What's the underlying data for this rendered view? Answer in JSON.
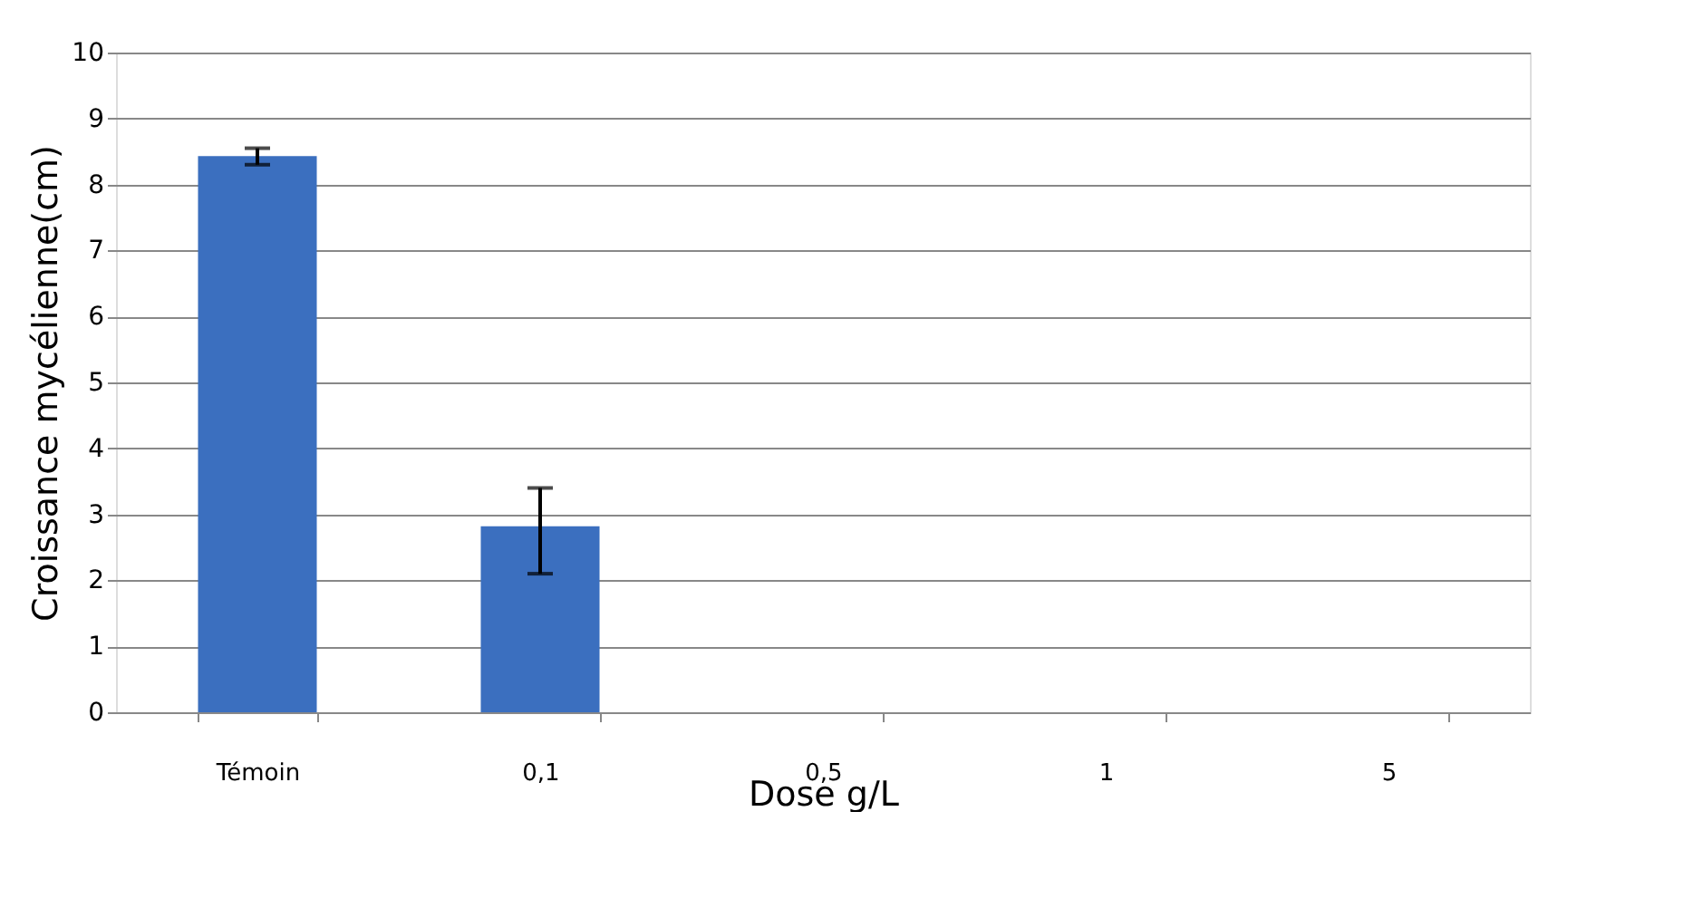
{
  "chart_data": {
    "type": "bar",
    "xlabel": "Dose g/L",
    "ylabel": "Croissance mycélienne(cm)",
    "categories": [
      "Témoin",
      "0,1",
      "0,5",
      "1",
      "5"
    ],
    "values": [
      8.43,
      2.82,
      0,
      0,
      0
    ],
    "errors": [
      [
        8.3,
        8.55
      ],
      [
        2.1,
        3.4
      ],
      null,
      null,
      null
    ],
    "color": "#3b6fbf",
    "ylim": [
      0,
      10
    ],
    "yticks": [
      0,
      1,
      2,
      3,
      4,
      5,
      6,
      7,
      8,
      9,
      10
    ],
    "grid": "y"
  }
}
